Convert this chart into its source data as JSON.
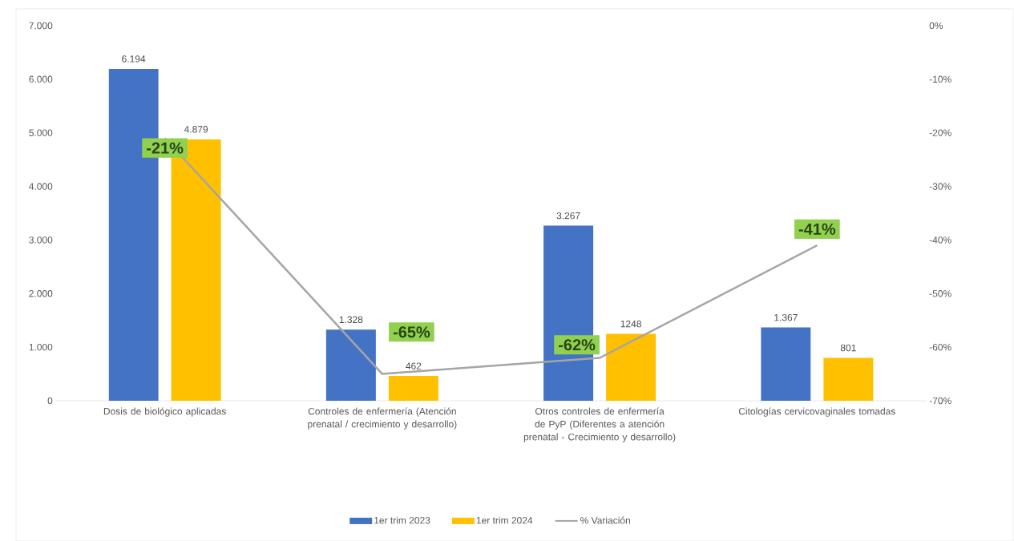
{
  "chart_data": {
    "type": "bar",
    "categories": [
      "Dosis de biológico aplicadas",
      "Controles de enfermería (Atención prenatal / crecimiento y desarrollo)",
      "Otros controles de enfermería de PyP (Diferentes a atención prenatal - Crecimiento y desarrollo)",
      "Citologías cervicovaginales tomadas"
    ],
    "series": [
      {
        "name": "1er trim 2023",
        "color": "#4472c4",
        "values": [
          6194,
          1328,
          3267,
          1367
        ],
        "value_labels": [
          "6.194",
          "1.328",
          "3.267",
          "1.367"
        ]
      },
      {
        "name": "1er trim 2024",
        "color": "#ffc000",
        "values": [
          4879,
          462,
          1248,
          801
        ],
        "value_labels": [
          "4.879",
          "462",
          "1248",
          "801"
        ]
      },
      {
        "name": "% Variación",
        "type": "line",
        "axis": "y2",
        "color": "#a5a5a5",
        "values": [
          -21,
          -65,
          -62,
          -41
        ],
        "value_labels": [
          "-21%",
          "-65%",
          "-62%",
          "-41%"
        ]
      }
    ],
    "ylim": [
      0,
      7000
    ],
    "yticks": [
      0,
      {
        "value": 1000,
        "label": "1.000"
      },
      {
        "value": 2000,
        "label": "2.000"
      },
      {
        "value": 3000,
        "label": "3.000"
      },
      {
        "value": 4000,
        "label": "4.000"
      },
      {
        "value": 5000,
        "label": "5.000"
      },
      {
        "value": 6000,
        "label": "6.000"
      },
      {
        "value": 7000,
        "label": "7.000"
      }
    ],
    "y2lim": [
      -70,
      0
    ],
    "y2ticks": [
      {
        "value": -70,
        "label": "-70%"
      },
      {
        "value": -60,
        "label": "-60%"
      },
      {
        "value": -50,
        "label": "-50%"
      },
      {
        "value": -40,
        "label": "-40%"
      },
      {
        "value": -30,
        "label": "-30%"
      },
      {
        "value": -20,
        "label": "-20%"
      },
      {
        "value": -10,
        "label": "-10%"
      },
      {
        "value": 0,
        "label": "0%"
      }
    ],
    "grid": false,
    "legend": "bottom"
  }
}
